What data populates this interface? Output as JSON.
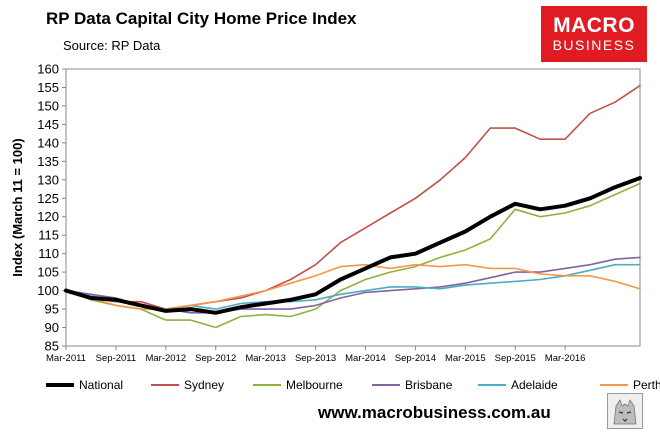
{
  "header": {
    "title": "RP Data Capital City Home Price Index",
    "subtitle": "Source: RP Data"
  },
  "logo": {
    "line1": "MACRO",
    "line2": "BUSINESS"
  },
  "footer": {
    "website": "www.macrobusiness.com.au"
  },
  "chart_data": {
    "type": "line",
    "title": "RP Data Capital City Home Price Index",
    "ylabel": "Index (March 11 = 100)",
    "xlabel": "",
    "ylim": [
      85,
      160
    ],
    "yticks": [
      85,
      90,
      95,
      100,
      105,
      110,
      115,
      120,
      125,
      130,
      135,
      140,
      145,
      150,
      155,
      160
    ],
    "xlim": [
      "2011-03",
      "2016-12"
    ],
    "xticks": [
      "Mar-2011",
      "Sep-2011",
      "Mar-2012",
      "Sep-2012",
      "Mar-2013",
      "Sep-2013",
      "Mar-2014",
      "Sep-2014",
      "Mar-2015",
      "Sep-2015",
      "Mar-2016"
    ],
    "x": [
      "2011-03",
      "2011-06",
      "2011-09",
      "2011-12",
      "2012-03",
      "2012-06",
      "2012-09",
      "2012-12",
      "2013-03",
      "2013-06",
      "2013-09",
      "2013-12",
      "2014-03",
      "2014-06",
      "2014-09",
      "2014-12",
      "2015-03",
      "2015-06",
      "2015-09",
      "2015-12",
      "2016-03",
      "2016-06",
      "2016-09",
      "2016-12"
    ],
    "legend": "bottom",
    "grid": false,
    "series": [
      {
        "name": "National",
        "color": "#000000",
        "width": 4,
        "values": [
          100,
          98,
          97.5,
          96,
          94.5,
          95,
          94,
          95.5,
          96.5,
          97.5,
          99,
          103,
          106,
          109,
          110,
          113,
          116,
          120,
          123.5,
          122,
          123,
          125,
          128,
          130.5
        ]
      },
      {
        "name": "Sydney",
        "color": "#c0504d",
        "width": 1.6,
        "values": [
          100,
          98,
          97,
          97,
          95,
          96,
          97,
          98,
          100,
          103,
          107,
          113,
          117,
          121,
          125,
          130,
          136,
          144,
          144,
          141,
          141,
          148,
          151,
          155.5
        ]
      },
      {
        "name": "Melbourne",
        "color": "#8db33f",
        "width": 1.6,
        "values": [
          100,
          97.5,
          96,
          95,
          92,
          92,
          90,
          93,
          93.5,
          93,
          95,
          100,
          103,
          105,
          106.5,
          109,
          111,
          114,
          122,
          120,
          121,
          123,
          126,
          129
        ]
      },
      {
        "name": "Brisbane",
        "color": "#8064a2",
        "width": 1.6,
        "values": [
          100,
          99,
          98,
          96,
          95,
          94,
          94,
          95,
          95,
          95,
          96,
          98,
          99.5,
          100,
          100.5,
          101,
          102,
          103.5,
          105,
          105,
          106,
          107,
          108.5,
          109
        ]
      },
      {
        "name": "Adelaide",
        "color": "#4bacc6",
        "width": 1.6,
        "values": [
          100,
          98.5,
          97.5,
          96,
          95,
          96,
          95,
          96.5,
          97,
          97,
          97.5,
          99,
          100,
          101,
          101,
          100.5,
          101.5,
          102,
          102.5,
          103,
          104,
          105.5,
          107,
          107
        ]
      },
      {
        "name": "Perth",
        "color": "#f79646",
        "width": 1.6,
        "values": [
          100,
          98,
          96,
          95,
          95,
          96,
          97,
          98.5,
          100,
          102,
          104,
          106.5,
          107,
          106,
          107,
          106.5,
          107,
          106,
          106,
          104.5,
          104,
          104,
          102.5,
          100.5
        ]
      }
    ]
  }
}
